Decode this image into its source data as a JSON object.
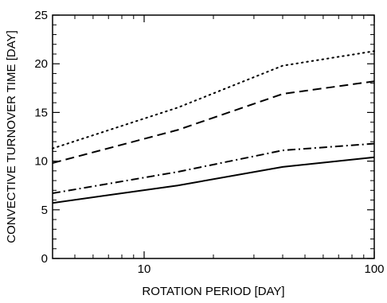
{
  "chart_data": {
    "type": "line",
    "xlabel": "ROTATION PERIOD [DAY]",
    "ylabel": "CONVECTIVE TURNOVER TIME [DAY]",
    "xscale": "log",
    "xlim": [
      4,
      100
    ],
    "ylim": [
      0,
      25
    ],
    "grid": false,
    "x_ticks": [
      {
        "value": 10,
        "label": "10"
      },
      {
        "value": 100,
        "label": "100"
      }
    ],
    "x_minor_ticks": [
      4,
      5,
      6,
      7,
      8,
      9,
      20,
      30,
      40,
      50,
      60,
      70,
      80,
      90
    ],
    "y_ticks": [
      {
        "value": 0,
        "label": "0"
      },
      {
        "value": 5,
        "label": "5"
      },
      {
        "value": 10,
        "label": "10"
      },
      {
        "value": 15,
        "label": "15"
      },
      {
        "value": 20,
        "label": "20"
      },
      {
        "value": 25,
        "label": "25"
      }
    ],
    "y_minor_ticks": [
      1,
      2,
      3,
      4,
      6,
      7,
      8,
      9,
      11,
      12,
      13,
      14,
      16,
      17,
      18,
      19,
      21,
      22,
      23,
      24
    ],
    "series": [
      {
        "style": "solid",
        "x": [
          4,
          14,
          40,
          100
        ],
        "y": [
          5.7,
          7.5,
          9.4,
          10.4
        ]
      },
      {
        "style": "dashdot",
        "x": [
          4,
          14,
          40,
          100
        ],
        "y": [
          6.7,
          8.9,
          11.1,
          11.8
        ]
      },
      {
        "style": "dashed",
        "x": [
          4,
          14,
          40,
          100
        ],
        "y": [
          9.8,
          13.2,
          16.9,
          18.2
        ]
      },
      {
        "style": "dotted",
        "x": [
          4,
          14,
          40,
          100
        ],
        "y": [
          11.3,
          15.5,
          19.8,
          21.3
        ]
      }
    ]
  }
}
